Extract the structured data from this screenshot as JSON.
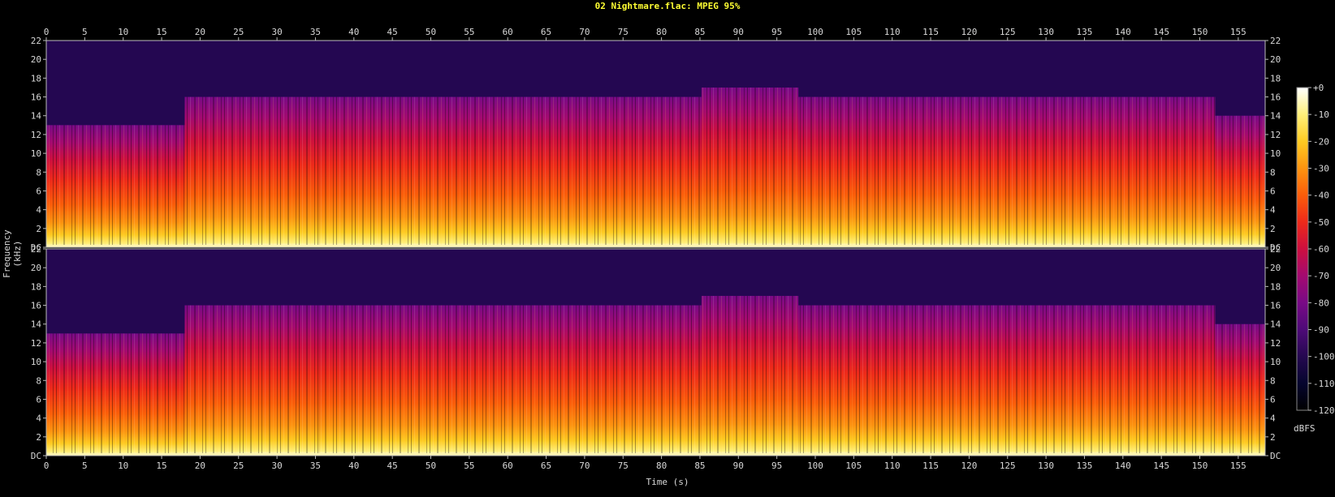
{
  "chart_data": {
    "type": "heatmap",
    "title": "02 Nightmare.flac: MPEG 95%",
    "xlabel": "Time (s)",
    "ylabel": "Frequency (kHz)",
    "xlim": [
      0,
      158.5
    ],
    "ylim": [
      0,
      22
    ],
    "x_ticks": [
      0,
      5,
      10,
      15,
      20,
      25,
      30,
      35,
      40,
      45,
      50,
      55,
      60,
      65,
      70,
      75,
      80,
      85,
      90,
      95,
      100,
      105,
      110,
      115,
      120,
      125,
      130,
      135,
      140,
      145,
      150,
      155
    ],
    "y_ticks": [
      {
        "value": 0,
        "label": "DC"
      },
      {
        "value": 2,
        "label": "2"
      },
      {
        "value": 4,
        "label": "4"
      },
      {
        "value": 6,
        "label": "6"
      },
      {
        "value": 8,
        "label": "8"
      },
      {
        "value": 10,
        "label": "10"
      },
      {
        "value": 12,
        "label": "12"
      },
      {
        "value": 14,
        "label": "14"
      },
      {
        "value": 16,
        "label": "16"
      },
      {
        "value": 18,
        "label": "18"
      },
      {
        "value": 20,
        "label": "20"
      },
      {
        "value": 22,
        "label": "22"
      }
    ],
    "channels": 2,
    "colorbar": {
      "unit": "dBFS",
      "range": [
        -120,
        0
      ],
      "ticks": [
        "+0",
        "-10",
        "-20",
        "-30",
        "-40",
        "-50",
        "-60",
        "-70",
        "-80",
        "-90",
        "-100",
        "-110",
        "-120"
      ]
    },
    "segments": [
      {
        "t_start": 0,
        "t_end": 18,
        "cutoff_khz": 13
      },
      {
        "t_start": 18,
        "t_end": 35.5,
        "cutoff_khz": 16
      },
      {
        "t_start": 35.5,
        "t_end": 85.2,
        "cutoff_khz": 16
      },
      {
        "t_start": 85.2,
        "t_end": 97.8,
        "cutoff_khz": 17
      },
      {
        "t_start": 97.8,
        "t_end": 152,
        "cutoff_khz": 16
      },
      {
        "t_start": 152,
        "t_end": 158.5,
        "cutoff_khz": 14
      }
    ],
    "colors": {
      "background": "#000000",
      "title": "#ffff33",
      "gradient": [
        "#000000",
        "#05052e",
        "#250850",
        "#4e0a78",
        "#790a86",
        "#a40a70",
        "#cd0f3f",
        "#ee2a1a",
        "#fb5d0a",
        "#fd9410",
        "#fecb22",
        "#fff07a",
        "#ffffff"
      ]
    }
  }
}
